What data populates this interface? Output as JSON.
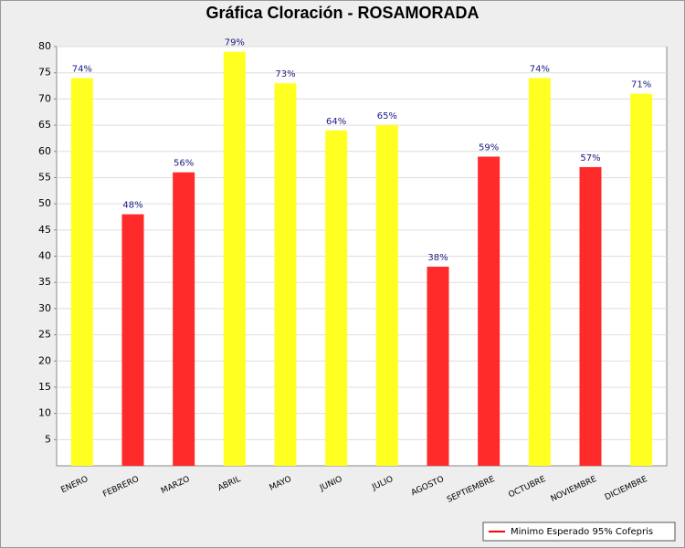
{
  "chart_data": {
    "type": "bar",
    "title": "Gráfica Cloración - ROSAMORADA",
    "categories": [
      "ENERO",
      "FEBRERO",
      "MARZO",
      "ABRIL",
      "MAYO",
      "JUNIO",
      "JULIO",
      "AGOSTO",
      "SEPTIEMBRE",
      "OCTUBRE",
      "NOVIEMBRE",
      "DICIEMBRE"
    ],
    "values": [
      74,
      48,
      56,
      79,
      73,
      64,
      65,
      38,
      59,
      74,
      57,
      71
    ],
    "value_labels": [
      "74%",
      "48%",
      "56%",
      "79%",
      "73%",
      "64%",
      "65%",
      "38%",
      "59%",
      "74%",
      "57%",
      "71%"
    ],
    "colors": [
      "#ffff22",
      "#ff2a2a",
      "#ff2a2a",
      "#ffff22",
      "#ffff22",
      "#ffff22",
      "#ffff22",
      "#ff2a2a",
      "#ff2a2a",
      "#ffff22",
      "#ff2a2a",
      "#ffff22"
    ],
    "ylim": [
      0,
      80
    ],
    "yticks": [
      5,
      10,
      15,
      20,
      25,
      30,
      35,
      40,
      45,
      50,
      55,
      60,
      65,
      70,
      75,
      80
    ],
    "grid": true,
    "legend": {
      "label": "Minimo Esperado 95% Cofepris",
      "color": "#ff0000",
      "position": "bottom-right"
    }
  }
}
